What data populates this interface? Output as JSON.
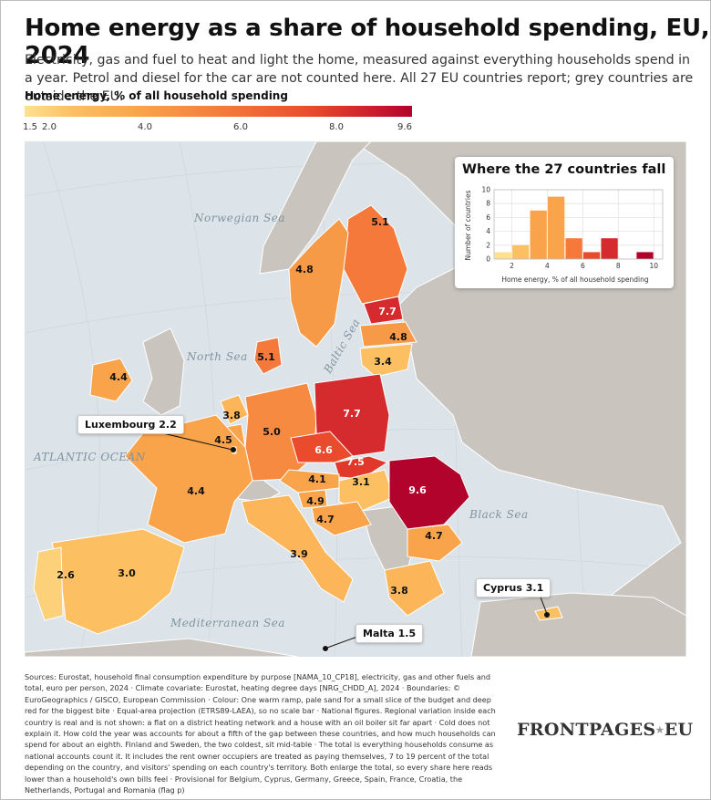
{
  "title": "Home energy as a share of household spending, EU, 2024",
  "subtitle": "Electricity, gas and fuel to heat and light the home, measured against everything households spend in a year. Petrol and diesel for the car are not counted here. All 27 EU countries report; grey countries are outside the EU.",
  "legend": {
    "title": "Home energy, % of all household spending",
    "ticks": [
      "1.5",
      "2.0",
      "4.0",
      "6.0",
      "8.0",
      "9.6"
    ],
    "tick_values": [
      1.5,
      2.0,
      4.0,
      6.0,
      8.0,
      9.6
    ],
    "range": [
      1.5,
      9.6
    ],
    "colors": [
      "#fde190",
      "#fcc063",
      "#f9a34a",
      "#f4793a",
      "#e94b2c",
      "#c6172d",
      "#b1032c"
    ]
  },
  "map": {
    "seas": [
      "Norwegian Sea",
      "North Sea",
      "ATLANTIC OCEAN",
      "Baltic Sea",
      "Black Sea",
      "Mediterranean Sea"
    ],
    "outside_eu_color": "#c9c4bd",
    "countries": [
      {
        "name": "Finland",
        "value": "5.1"
      },
      {
        "name": "Sweden",
        "value": "4.8"
      },
      {
        "name": "Estonia",
        "value": "7.7"
      },
      {
        "name": "Latvia",
        "value": "4.8"
      },
      {
        "name": "Lithuania",
        "value": "3.4"
      },
      {
        "name": "Ireland",
        "value": "4.4"
      },
      {
        "name": "Denmark",
        "value": "5.1"
      },
      {
        "name": "Netherlands",
        "value": "3.8"
      },
      {
        "name": "Belgium",
        "value": "4.5"
      },
      {
        "name": "Germany",
        "value": "5.0"
      },
      {
        "name": "Poland",
        "value": "7.7"
      },
      {
        "name": "Czechia",
        "value": "6.6"
      },
      {
        "name": "Slovakia",
        "value": "7.5"
      },
      {
        "name": "Austria",
        "value": "4.1"
      },
      {
        "name": "Hungary",
        "value": "3.1"
      },
      {
        "name": "Romania",
        "value": "9.6"
      },
      {
        "name": "Slovenia",
        "value": "4.9"
      },
      {
        "name": "Croatia",
        "value": "4.7"
      },
      {
        "name": "France",
        "value": "4.4"
      },
      {
        "name": "Italy",
        "value": "3.9"
      },
      {
        "name": "Bulgaria",
        "value": "4.7"
      },
      {
        "name": "Greece",
        "value": "3.8"
      },
      {
        "name": "Spain",
        "value": "3.0"
      },
      {
        "name": "Portugal",
        "value": "2.6"
      }
    ],
    "callouts": [
      "Luxembourg 2.2",
      "Cyprus 3.1",
      "Malta 1.5"
    ]
  },
  "inset": {
    "title": "Where the 27 countries fall",
    "ylabel": "Number of countries",
    "xlabel": "Home energy, % of all household spending"
  },
  "chart_data": {
    "type": "bar",
    "title": "Where the 27 countries fall",
    "xlabel": "Home energy, % of all household spending",
    "ylabel": "Number of countries",
    "bins": [
      [
        1,
        2
      ],
      [
        2,
        3
      ],
      [
        3,
        4
      ],
      [
        4,
        5
      ],
      [
        5,
        6
      ],
      [
        6,
        7
      ],
      [
        7,
        8
      ],
      [
        9,
        10
      ]
    ],
    "counts": [
      1,
      2,
      7,
      9,
      3,
      1,
      3,
      1
    ],
    "colors": [
      "#fde190",
      "#fcc063",
      "#f9a34a",
      "#f9a34a",
      "#f4793a",
      "#e94b2c",
      "#d52b2e",
      "#b1032c"
    ],
    "xlim": [
      1,
      10.5
    ],
    "ylim": [
      0,
      10
    ],
    "xticks": [
      2,
      4,
      6,
      8,
      10
    ],
    "yticks": [
      0,
      2,
      4,
      6,
      8,
      10
    ],
    "grid": true
  },
  "sources": "Sources: Eurostat, household final consumption expenditure by purpose [NAMA_10_CP18], electricity, gas and other fuels and total, euro per person, 2024 · Climate covariate: Eurostat, heating degree days [NRG_CHDD_A], 2024 · Boundaries: © EuroGeographics / GISCO, European Commission · Colour: One warm ramp, pale sand for a small slice of the budget and deep red for the biggest bite · Equal-area projection (ETRS89-LAEA), so no scale bar · National figures. Regional variation inside each country is real and is not shown: a flat on a district heating network and a house with an oil boiler sit far apart · Cold does not explain it. How cold the year was accounts for about a fifth of the gap between these countries, and how much households can spend for about an eighth. Finland and Sweden, the two coldest, sit mid-table · The total is everything households consume as national accounts count it. It includes the rent owner occupiers are treated as paying themselves, 7 to 19 percent of the total depending on the country, and visitors' spending on each country's territory. Both enlarge the total, so every share here reads lower than a household's own bills feel · Provisional for Belgium, Cyprus, Germany, Greece, Spain, France, Croatia, the Netherlands, Portugal and Romania (flag p)",
  "brand": "FRONTPAGES",
  "brand_suffix": "EU"
}
